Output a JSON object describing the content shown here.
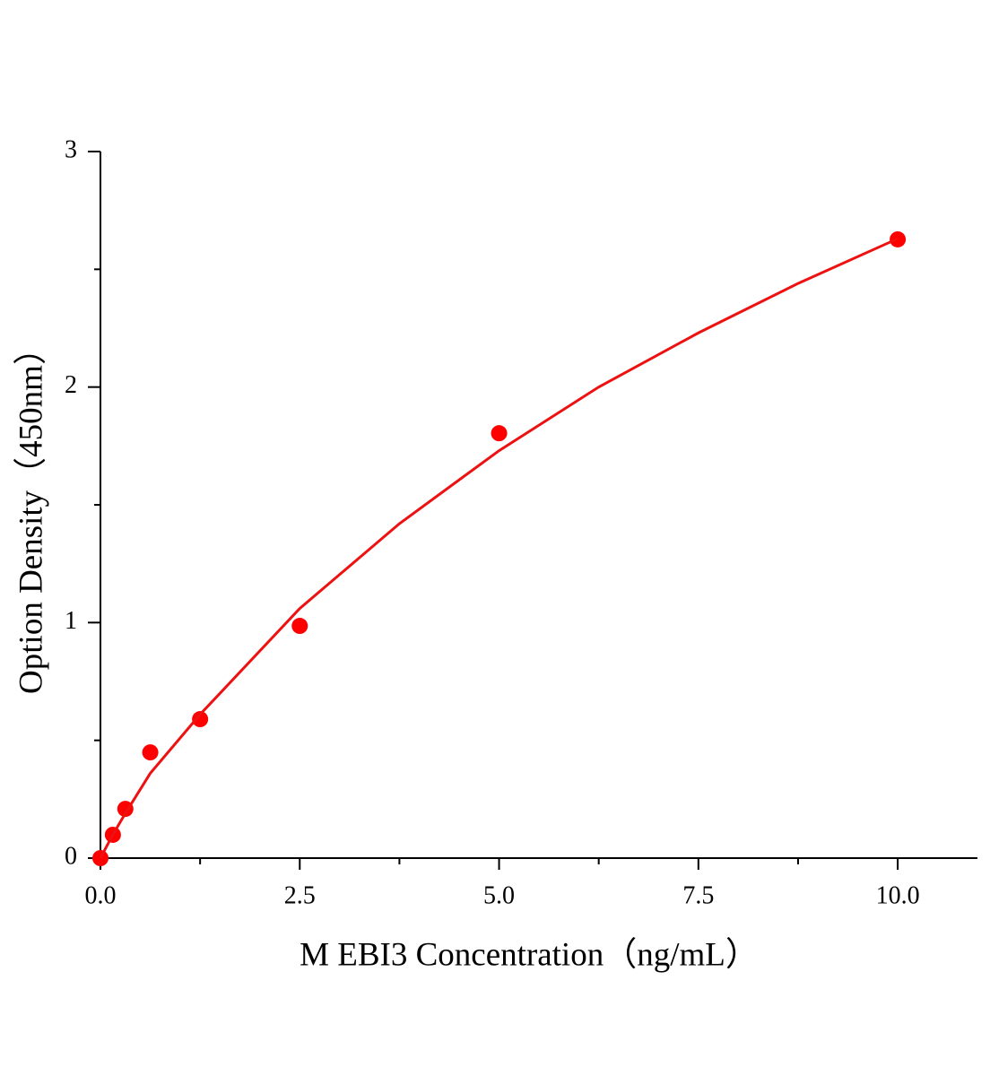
{
  "chart_data": {
    "type": "scatter",
    "x_label": "M EBI3 Concentration（ng/mL）",
    "y_label": "Option Density（450nm）",
    "xlim": [
      0,
      11
    ],
    "ylim": [
      0,
      3
    ],
    "xticks": [
      {
        "value": 0,
        "label": "0.0"
      },
      {
        "value": 2.5,
        "label": "2.5"
      },
      {
        "value": 5,
        "label": "5.0"
      },
      {
        "value": 7.5,
        "label": "7.5"
      },
      {
        "value": 10,
        "label": "10.0"
      }
    ],
    "xminorticks": [
      1.25,
      3.75,
      6.25,
      8.75
    ],
    "yticks": [
      0,
      1,
      2,
      3
    ],
    "yminorticks": [
      0.5,
      1.5,
      2.5
    ],
    "series": [
      {
        "color": "#ff0000",
        "x": [
          0,
          0.156,
          0.3125,
          0.625,
          1.25,
          2.5,
          5,
          10
        ],
        "values": [
          0,
          0.099,
          0.209,
          0.449,
          0.59,
          0.986,
          1.804,
          2.627
        ]
      },
      {
        "type": "line",
        "color": "#ee1111",
        "x": [
          0,
          0.156,
          0.3125,
          0.625,
          1.25,
          2.5,
          3.75,
          5,
          6.25,
          7.5,
          8.75,
          10
        ],
        "values": [
          0,
          0.1,
          0.19,
          0.36,
          0.61,
          1.06,
          1.42,
          1.73,
          2.0,
          2.23,
          2.44,
          2.63
        ]
      }
    ]
  }
}
